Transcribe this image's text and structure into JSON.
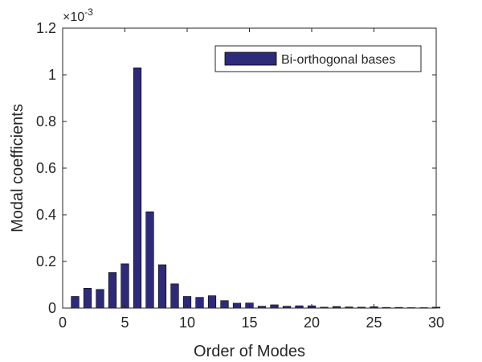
{
  "chart_data": {
    "type": "bar",
    "x": [
      1,
      2,
      3,
      4,
      5,
      6,
      7,
      8,
      9,
      10,
      11,
      12,
      13,
      14,
      15,
      16,
      17,
      18,
      19,
      20,
      21,
      22,
      23,
      24,
      25,
      26,
      27,
      28,
      29,
      30
    ],
    "series": [
      {
        "name": "Bi-orthogonal bases",
        "values": [
          0.05,
          0.085,
          0.08,
          0.153,
          0.19,
          1.03,
          0.413,
          0.186,
          0.104,
          0.05,
          0.046,
          0.053,
          0.032,
          0.021,
          0.022,
          0.008,
          0.014,
          0.008,
          0.01,
          0.01,
          0.004,
          0.007,
          0.005,
          0.004,
          0.006,
          0.003,
          0.003,
          0.002,
          0.002,
          0.004
        ]
      }
    ],
    "xlabel": "Order of Modes",
    "ylabel": "Modal coefficients",
    "xlim": [
      0,
      30
    ],
    "ylim": [
      0,
      1.2
    ],
    "xticks": [
      "0",
      "5",
      "10",
      "15",
      "20",
      "25",
      "30"
    ],
    "yticks": [
      "0",
      "0.2",
      "0.4",
      "0.6",
      "0.8",
      "1",
      "1.2"
    ],
    "y_multiplier": {
      "base": "×10",
      "exponent": "-3"
    },
    "legend_position": "top-right",
    "bar_color": "#2e2a7a",
    "grid": false
  }
}
